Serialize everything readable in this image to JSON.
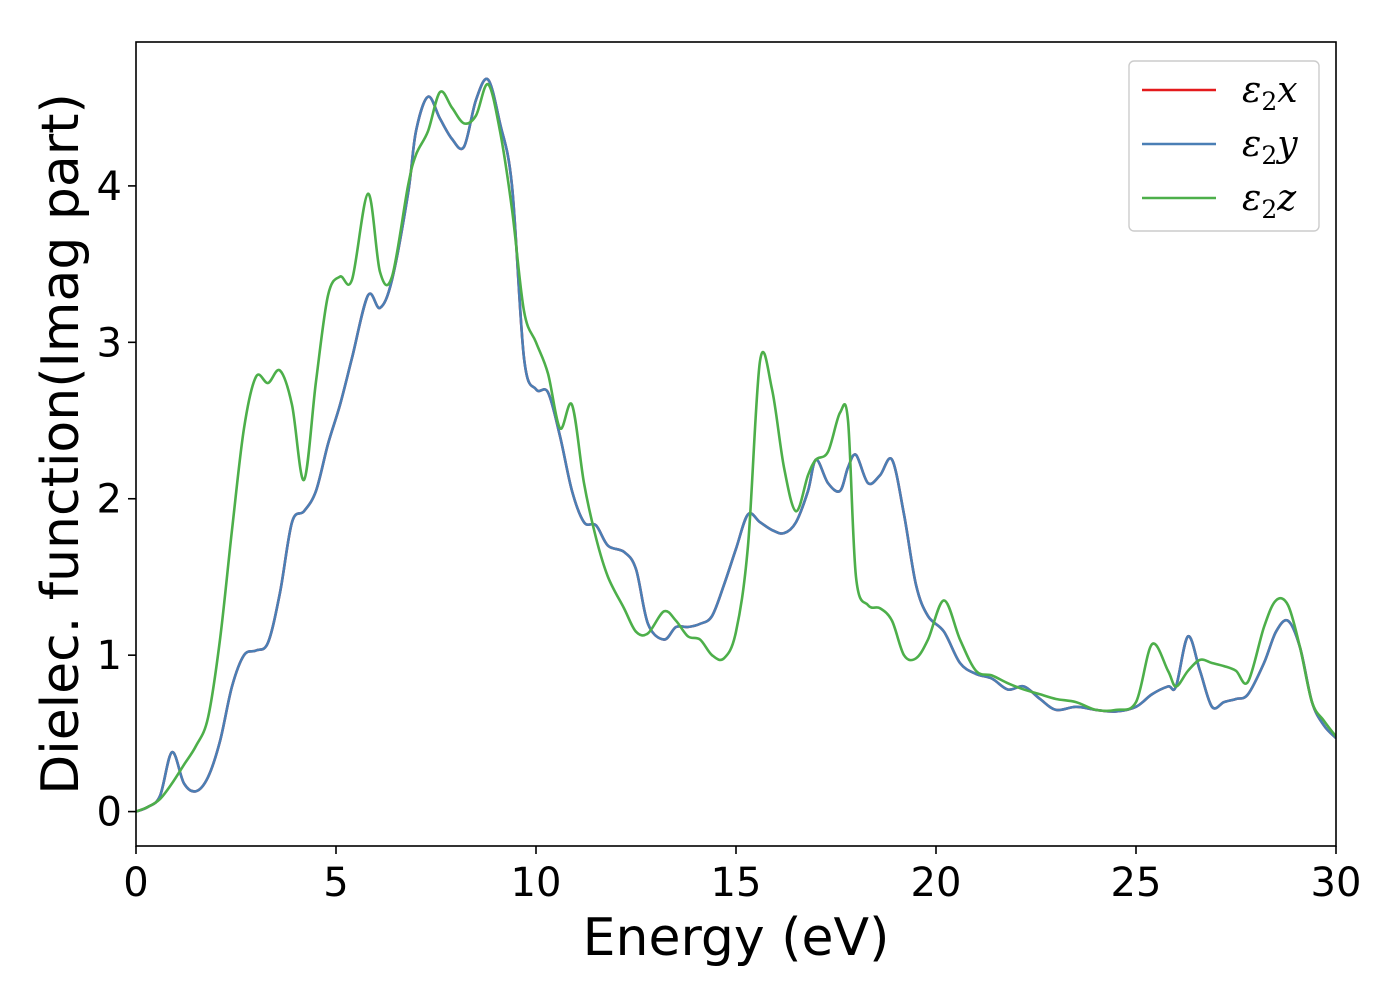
{
  "chart_data": {
    "type": "line",
    "xlabel": "Energy (eV)",
    "ylabel": "Dielec. function(Imag part)",
    "xlim": [
      0,
      30
    ],
    "ylim": [
      -0.22,
      4.92
    ],
    "xticks": [
      0,
      5,
      10,
      15,
      20,
      25,
      30
    ],
    "yticks": [
      0,
      1,
      2,
      3,
      4
    ],
    "grid": false,
    "legend_position": "top-right",
    "series": [
      {
        "name": "ε2x",
        "legend": {
          "base": "ε",
          "sub": "2",
          "var": "x"
        },
        "color": "#e41a1c",
        "x": [
          0,
          0.3,
          0.6,
          0.9,
          1.2,
          1.5,
          1.8,
          2.1,
          2.4,
          2.7,
          3.0,
          3.3,
          3.6,
          3.9,
          4.2,
          4.5,
          4.8,
          5.1,
          5.4,
          5.8,
          6.1,
          6.4,
          6.8,
          7.0,
          7.3,
          7.6,
          7.9,
          8.2,
          8.5,
          8.8,
          9.1,
          9.4,
          9.7,
          10.0,
          10.3,
          10.6,
          10.9,
          11.2,
          11.5,
          11.8,
          12.2,
          12.5,
          12.8,
          13.2,
          13.5,
          13.8,
          14.1,
          14.4,
          14.7,
          15.0,
          15.3,
          15.6,
          15.9,
          16.2,
          16.5,
          16.8,
          17.0,
          17.3,
          17.6,
          17.8,
          18.0,
          18.3,
          18.6,
          18.9,
          19.2,
          19.5,
          19.8,
          20.2,
          20.6,
          21.0,
          21.4,
          21.8,
          22.2,
          22.6,
          23.0,
          23.5,
          24.0,
          24.5,
          25.0,
          25.4,
          25.8,
          26.0,
          26.3,
          26.6,
          26.9,
          27.2,
          27.5,
          27.8,
          28.2,
          28.5,
          28.8,
          29.1,
          29.4,
          29.7,
          30.0
        ],
        "y": [
          0.0,
          0.03,
          0.1,
          0.38,
          0.18,
          0.13,
          0.22,
          0.45,
          0.8,
          1.0,
          1.03,
          1.08,
          1.4,
          1.85,
          1.92,
          2.05,
          2.35,
          2.6,
          2.9,
          3.3,
          3.22,
          3.4,
          3.95,
          4.35,
          4.57,
          4.43,
          4.3,
          4.25,
          4.55,
          4.68,
          4.4,
          4.0,
          2.9,
          2.7,
          2.68,
          2.4,
          2.05,
          1.85,
          1.83,
          1.7,
          1.66,
          1.55,
          1.2,
          1.1,
          1.18,
          1.18,
          1.2,
          1.25,
          1.45,
          1.68,
          1.9,
          1.85,
          1.8,
          1.78,
          1.85,
          2.05,
          2.25,
          2.1,
          2.05,
          2.2,
          2.28,
          2.1,
          2.15,
          2.25,
          1.9,
          1.45,
          1.25,
          1.15,
          0.95,
          0.88,
          0.85,
          0.78,
          0.8,
          0.72,
          0.65,
          0.67,
          0.65,
          0.64,
          0.67,
          0.75,
          0.8,
          0.8,
          1.12,
          0.9,
          0.67,
          0.7,
          0.72,
          0.75,
          0.95,
          1.15,
          1.22,
          1.05,
          0.7,
          0.55,
          0.47
        ]
      },
      {
        "name": "ε2y",
        "legend": {
          "base": "ε",
          "sub": "2",
          "var": "y"
        },
        "color": "#4a7fb5",
        "x": [
          0,
          0.3,
          0.6,
          0.9,
          1.2,
          1.5,
          1.8,
          2.1,
          2.4,
          2.7,
          3.0,
          3.3,
          3.6,
          3.9,
          4.2,
          4.5,
          4.8,
          5.1,
          5.4,
          5.8,
          6.1,
          6.4,
          6.8,
          7.0,
          7.3,
          7.6,
          7.9,
          8.2,
          8.5,
          8.8,
          9.1,
          9.4,
          9.7,
          10.0,
          10.3,
          10.6,
          10.9,
          11.2,
          11.5,
          11.8,
          12.2,
          12.5,
          12.8,
          13.2,
          13.5,
          13.8,
          14.1,
          14.4,
          14.7,
          15.0,
          15.3,
          15.6,
          15.9,
          16.2,
          16.5,
          16.8,
          17.0,
          17.3,
          17.6,
          17.8,
          18.0,
          18.3,
          18.6,
          18.9,
          19.2,
          19.5,
          19.8,
          20.2,
          20.6,
          21.0,
          21.4,
          21.8,
          22.2,
          22.6,
          23.0,
          23.5,
          24.0,
          24.5,
          25.0,
          25.4,
          25.8,
          26.0,
          26.3,
          26.6,
          26.9,
          27.2,
          27.5,
          27.8,
          28.2,
          28.5,
          28.8,
          29.1,
          29.4,
          29.7,
          30.0
        ],
        "y": [
          0.0,
          0.03,
          0.1,
          0.38,
          0.18,
          0.13,
          0.22,
          0.45,
          0.8,
          1.0,
          1.03,
          1.08,
          1.4,
          1.85,
          1.92,
          2.05,
          2.35,
          2.6,
          2.9,
          3.3,
          3.22,
          3.4,
          3.95,
          4.35,
          4.57,
          4.43,
          4.3,
          4.25,
          4.55,
          4.68,
          4.4,
          4.0,
          2.9,
          2.7,
          2.68,
          2.4,
          2.05,
          1.85,
          1.83,
          1.7,
          1.66,
          1.55,
          1.2,
          1.1,
          1.18,
          1.18,
          1.2,
          1.25,
          1.45,
          1.68,
          1.9,
          1.85,
          1.8,
          1.78,
          1.85,
          2.05,
          2.25,
          2.1,
          2.05,
          2.2,
          2.28,
          2.1,
          2.15,
          2.25,
          1.9,
          1.45,
          1.25,
          1.15,
          0.95,
          0.88,
          0.85,
          0.78,
          0.8,
          0.72,
          0.65,
          0.67,
          0.65,
          0.64,
          0.67,
          0.75,
          0.8,
          0.8,
          1.12,
          0.9,
          0.67,
          0.7,
          0.72,
          0.75,
          0.95,
          1.15,
          1.22,
          1.05,
          0.7,
          0.55,
          0.47
        ]
      },
      {
        "name": "ε2z",
        "legend": {
          "base": "ε",
          "sub": "2",
          "var": "z"
        },
        "color": "#4daf4a",
        "x": [
          0,
          0.3,
          0.6,
          0.9,
          1.2,
          1.5,
          1.8,
          2.1,
          2.4,
          2.7,
          3.0,
          3.3,
          3.6,
          3.9,
          4.2,
          4.5,
          4.8,
          5.1,
          5.4,
          5.8,
          6.1,
          6.4,
          6.8,
          7.0,
          7.3,
          7.6,
          7.9,
          8.2,
          8.5,
          8.8,
          9.1,
          9.4,
          9.7,
          10.0,
          10.3,
          10.6,
          10.9,
          11.2,
          11.5,
          11.8,
          12.2,
          12.5,
          12.8,
          13.2,
          13.5,
          13.8,
          14.1,
          14.4,
          14.7,
          15.0,
          15.3,
          15.6,
          15.9,
          16.2,
          16.5,
          16.8,
          17.0,
          17.3,
          17.6,
          17.8,
          18.0,
          18.3,
          18.6,
          18.9,
          19.2,
          19.5,
          19.8,
          20.2,
          20.6,
          21.0,
          21.4,
          21.8,
          22.2,
          22.6,
          23.0,
          23.5,
          24.0,
          24.5,
          25.0,
          25.4,
          25.8,
          26.0,
          26.3,
          26.6,
          26.9,
          27.2,
          27.5,
          27.8,
          28.2,
          28.5,
          28.8,
          29.1,
          29.4,
          29.7,
          30.0
        ],
        "y": [
          0.0,
          0.03,
          0.08,
          0.18,
          0.3,
          0.42,
          0.6,
          1.1,
          1.8,
          2.45,
          2.78,
          2.74,
          2.82,
          2.6,
          2.12,
          2.75,
          3.3,
          3.42,
          3.4,
          3.95,
          3.45,
          3.42,
          4.0,
          4.2,
          4.35,
          4.6,
          4.5,
          4.4,
          4.45,
          4.65,
          4.35,
          3.85,
          3.2,
          3.0,
          2.8,
          2.45,
          2.6,
          2.1,
          1.75,
          1.5,
          1.3,
          1.15,
          1.14,
          1.28,
          1.22,
          1.12,
          1.1,
          1.0,
          0.98,
          1.15,
          1.7,
          2.88,
          2.7,
          2.2,
          1.92,
          2.15,
          2.25,
          2.3,
          2.55,
          2.5,
          1.5,
          1.32,
          1.3,
          1.22,
          1.0,
          0.98,
          1.1,
          1.35,
          1.1,
          0.9,
          0.87,
          0.82,
          0.78,
          0.75,
          0.72,
          0.7,
          0.65,
          0.65,
          0.7,
          1.07,
          0.9,
          0.8,
          0.9,
          0.97,
          0.95,
          0.93,
          0.9,
          0.83,
          1.18,
          1.35,
          1.32,
          1.05,
          0.7,
          0.58,
          0.48
        ]
      }
    ]
  }
}
